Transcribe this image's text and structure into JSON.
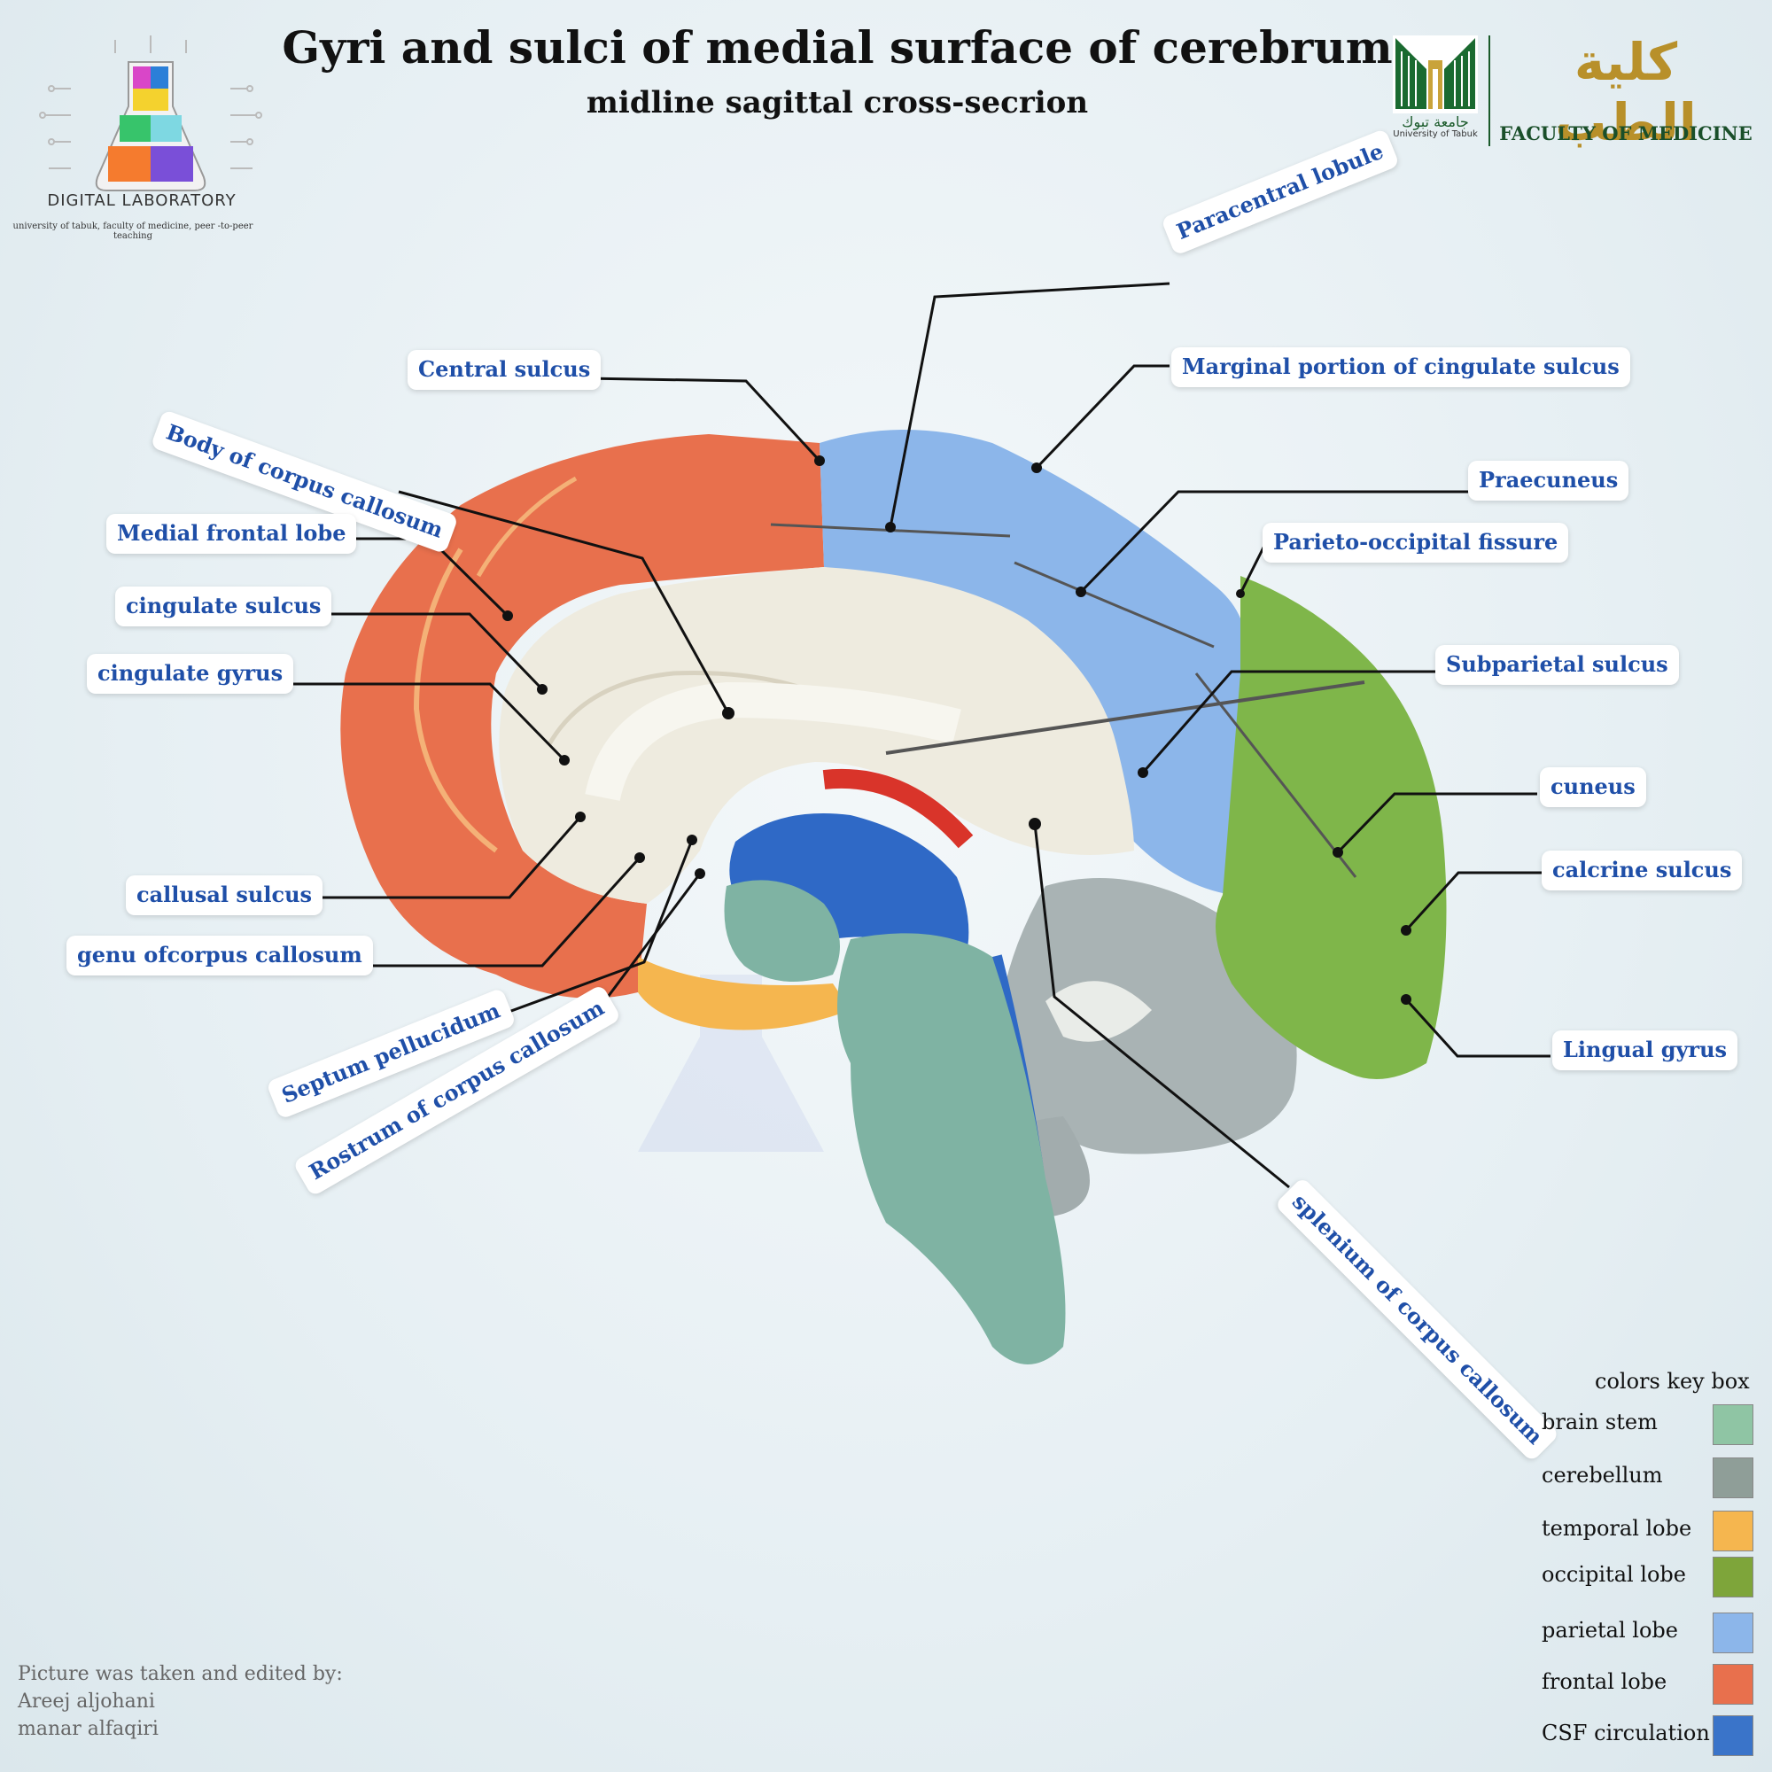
{
  "header": {
    "title": "Gyri and sulci of medial surface of cerebrum",
    "subtitle": "midline sagittal cross-secrion"
  },
  "branding": {
    "lab_name": "DIGITAL LABORATORY",
    "lab_subtitle": "university of tabuk, faculty of medicine, peer -to-peer teaching",
    "university_arabic": "جامعة تبوك",
    "university_english": "University of Tabuk",
    "faculty_arabic": "كلية الطب",
    "faculty_english": "FACULTY OF MEDICINE"
  },
  "labels": {
    "paracentral_lobule": "Paracentral lobule",
    "central_sulcus": "Central  sulcus",
    "marginal_portion": "Marginal portion of cingulate sulcus",
    "body_corpus_callosum": "Body of corpus callosum",
    "praecuneus": "Praecuneus",
    "medial_frontal_lobe": "Medial frontal lobe",
    "parieto_occipital_fissure": "Parieto-occipital fissure",
    "cingulate_sulcus": "cingulate sulcus",
    "subparietal_sulcus": "Subparietal sulcus",
    "cingulate_gyrus": "cingulate gyrus",
    "cuneus": "cuneus",
    "calcrine_sulcus": "calcrine  sulcus",
    "callusal_sulcus": "callusal sulcus",
    "genu_corpus_callosum": "genu ofcorpus callosum",
    "lingual_gyrus": "Lingual gyrus",
    "septum_pellucidum": "Septum pellucidum",
    "rostrum_corpus_callosum": "Rostrum of corpus callosum",
    "splenium_corpus_callosum": "splenium of corpus callosum"
  },
  "color_key": {
    "title": "colors key box",
    "items": [
      {
        "name": "brain stem",
        "color": "#8fc5a4"
      },
      {
        "name": "cerebellum",
        "color": "#8f9e98"
      },
      {
        "name": "temporal lobe",
        "color": "#f5b64f"
      },
      {
        "name": "occipital lobe",
        "color": "#7ea53a"
      },
      {
        "name": "parietal lobe",
        "color": "#8cb6ea"
      },
      {
        "name": "frontal lobe",
        "color": "#e8704d"
      },
      {
        "name": "CSF circulation",
        "color": "#3a74c9"
      }
    ]
  },
  "credits": {
    "line1": "Picture was taken and edited by:",
    "line2": "Areej aljohani",
    "line3": "manar alfaqiri"
  }
}
